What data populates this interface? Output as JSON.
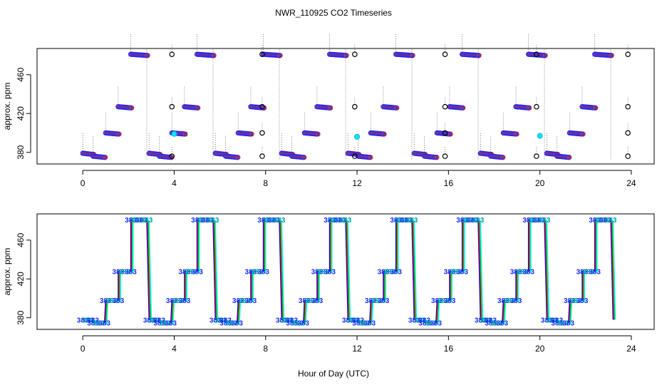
{
  "figure": {
    "title": "NWR_110925  CO2 Timeseries",
    "xlabel": "Hour of Day (UTC)"
  },
  "chart_data": [
    {
      "type": "scatter",
      "panel": "top",
      "ylabel": "approx. ppm",
      "xlim": [
        -2,
        25
      ],
      "ylim": [
        368,
        487
      ],
      "xticks": [
        "0",
        "4",
        "8",
        "12",
        "16",
        "20",
        "24"
      ],
      "xtick_values": [
        0,
        4,
        8,
        12,
        16,
        20,
        24
      ],
      "yticks": [
        "380",
        "420",
        "460"
      ],
      "ytick_values": [
        380,
        420,
        460
      ],
      "cycle_hours": 2.9,
      "cycle_offsets": [
        0,
        2.9,
        5.8,
        8.7,
        11.6,
        14.5,
        17.4,
        20.3
      ],
      "steps": [
        {
          "start": 0.0,
          "end": 0.45,
          "value": 379
        },
        {
          "start": 0.45,
          "end": 0.95,
          "value": 376
        },
        {
          "start": 1.0,
          "end": 1.55,
          "value": 400
        },
        {
          "start": 1.55,
          "end": 2.1,
          "value": 427
        },
        {
          "start": 2.1,
          "end": 2.8,
          "value": 481
        }
      ],
      "reference_points": [
        {
          "x": 3.9,
          "value": 376
        },
        {
          "x": 3.9,
          "value": 427
        },
        {
          "x": 3.9,
          "value": 481
        },
        {
          "x": 7.85,
          "value": 376
        },
        {
          "x": 7.85,
          "value": 400
        },
        {
          "x": 7.85,
          "value": 427
        },
        {
          "x": 7.85,
          "value": 481
        },
        {
          "x": 11.9,
          "value": 376
        },
        {
          "x": 11.9,
          "value": 427
        },
        {
          "x": 11.9,
          "value": 481
        },
        {
          "x": 15.85,
          "value": 376
        },
        {
          "x": 15.85,
          "value": 400
        },
        {
          "x": 15.85,
          "value": 427
        },
        {
          "x": 15.85,
          "value": 481
        },
        {
          "x": 19.85,
          "value": 376
        },
        {
          "x": 19.85,
          "value": 427
        },
        {
          "x": 19.85,
          "value": 481
        },
        {
          "x": 23.85,
          "value": 376
        },
        {
          "x": 23.85,
          "value": 400
        },
        {
          "x": 23.85,
          "value": 427
        },
        {
          "x": 23.85,
          "value": 481
        }
      ],
      "highlight_points": [
        {
          "x": 4.0,
          "value": 399
        },
        {
          "x": 12.0,
          "value": 396
        },
        {
          "x": 20.0,
          "value": 397
        }
      ]
    },
    {
      "type": "line",
      "panel": "bottom",
      "ylabel": "approx. ppm",
      "xlim": [
        -2,
        25
      ],
      "ylim": [
        368,
        487
      ],
      "xticks": [
        "0",
        "4",
        "8",
        "12",
        "16",
        "20",
        "24"
      ],
      "xtick_values": [
        0,
        4,
        8,
        12,
        16,
        20,
        24
      ],
      "yticks": [
        "380",
        "420",
        "460"
      ],
      "ytick_values": [
        380,
        420,
        460
      ],
      "cycle_hours": 2.9,
      "cycle_offsets": [
        0,
        2.9,
        5.8,
        8.7,
        11.6,
        14.5,
        17.4,
        20.3
      ],
      "steps": [
        {
          "start": 0.0,
          "end": 0.45,
          "value": 378
        },
        {
          "start": 0.45,
          "end": 0.95,
          "value": 375
        },
        {
          "start": 1.0,
          "end": 1.55,
          "value": 398
        },
        {
          "start": 1.55,
          "end": 2.1,
          "value": 428
        },
        {
          "start": 2.1,
          "end": 2.8,
          "value": 481
        }
      ],
      "point_label": "383",
      "series_colors": [
        "#0000ff",
        "#ff0000",
        "#00cc00",
        "#00ffff"
      ]
    }
  ]
}
